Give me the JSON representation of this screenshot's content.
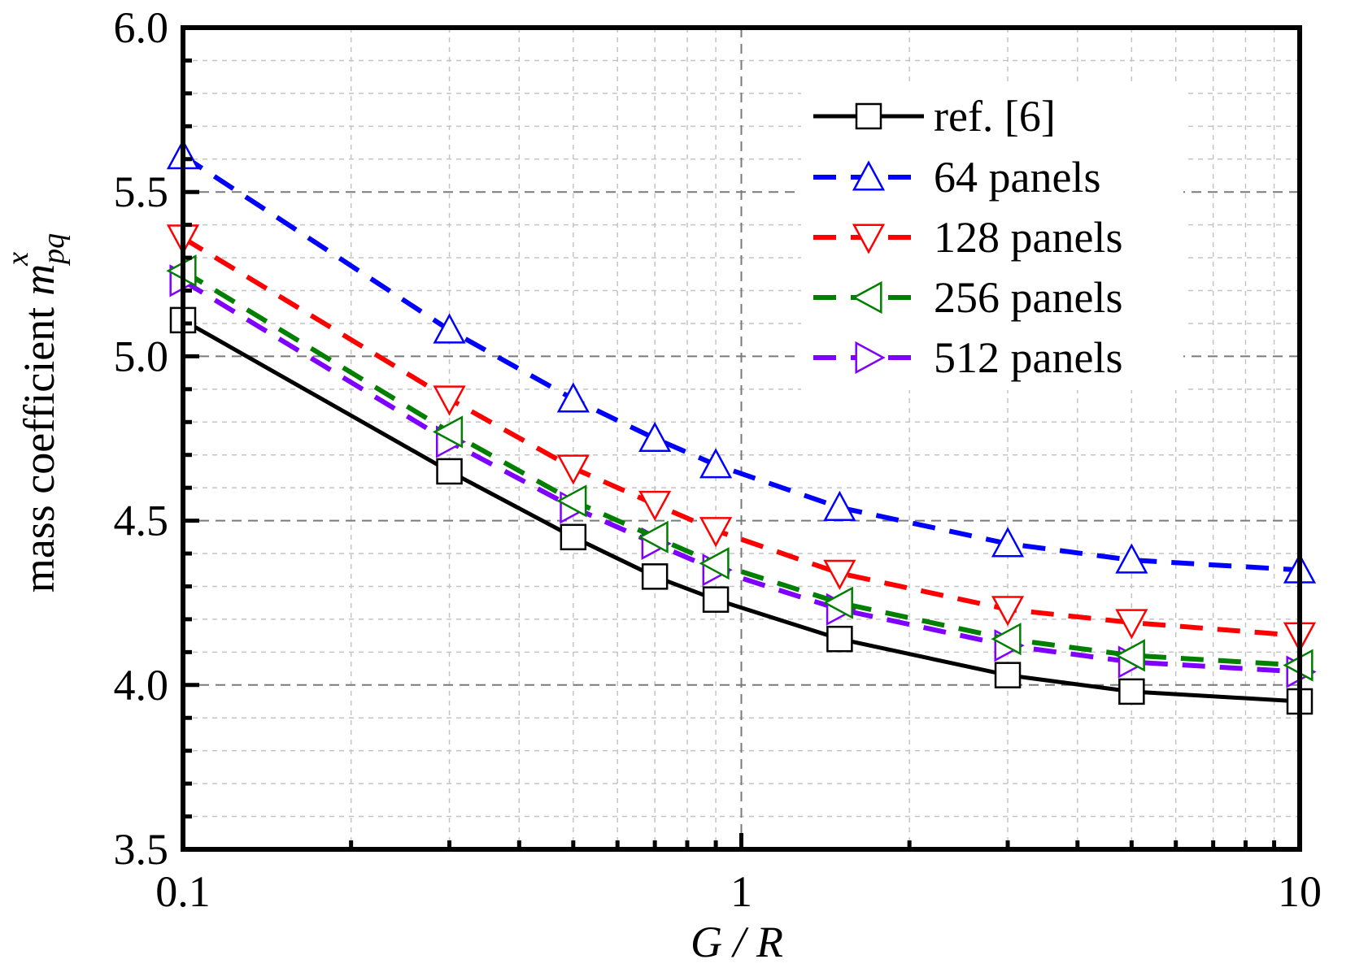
{
  "chart_data": {
    "type": "line",
    "xlabel": "G / R",
    "ylabel": "mass coefficient",
    "ylabel_symbol": "m",
    "ylabel_sub": "pq",
    "ylabel_sup": "x",
    "xscale": "log",
    "xlim": [
      0.1,
      10
    ],
    "ylim": [
      3.5,
      6.0
    ],
    "xticks": [
      "0.1",
      "1",
      "10"
    ],
    "yticks": [
      "3.5",
      "4.0",
      "4.5",
      "5.0",
      "5.5",
      "6.0"
    ],
    "grid": true,
    "legend": "top-right",
    "x": [
      0.1,
      0.3,
      0.5,
      0.7,
      0.9,
      1.5,
      3,
      5,
      10
    ],
    "series": [
      {
        "name": "ref. [6]",
        "color": "#000000",
        "dash": "solid",
        "marker": "square",
        "y": [
          5.11,
          4.65,
          4.45,
          4.33,
          4.26,
          4.14,
          4.03,
          3.98,
          3.95
        ]
      },
      {
        "name": "64 panels",
        "color": "#0000ff",
        "dash": "dashed",
        "marker": "triangle-up",
        "y": [
          5.61,
          5.08,
          4.87,
          4.75,
          4.67,
          4.54,
          4.43,
          4.38,
          4.35
        ]
      },
      {
        "name": "128 panels",
        "color": "#ff0000",
        "dash": "dashed",
        "marker": "triangle-down",
        "y": [
          5.36,
          4.87,
          4.66,
          4.55,
          4.47,
          4.34,
          4.23,
          4.19,
          4.15
        ]
      },
      {
        "name": "256 panels",
        "color": "#007f00",
        "dash": "dashed",
        "marker": "triangle-left",
        "y": [
          5.26,
          4.77,
          4.56,
          4.45,
          4.37,
          4.25,
          4.14,
          4.09,
          4.06
        ]
      },
      {
        "name": "512 panels",
        "color": "#7f00ff",
        "dash": "dashed",
        "marker": "triangle-right",
        "y": [
          5.23,
          4.74,
          4.54,
          4.43,
          4.35,
          4.23,
          4.12,
          4.07,
          4.04
        ]
      }
    ]
  }
}
